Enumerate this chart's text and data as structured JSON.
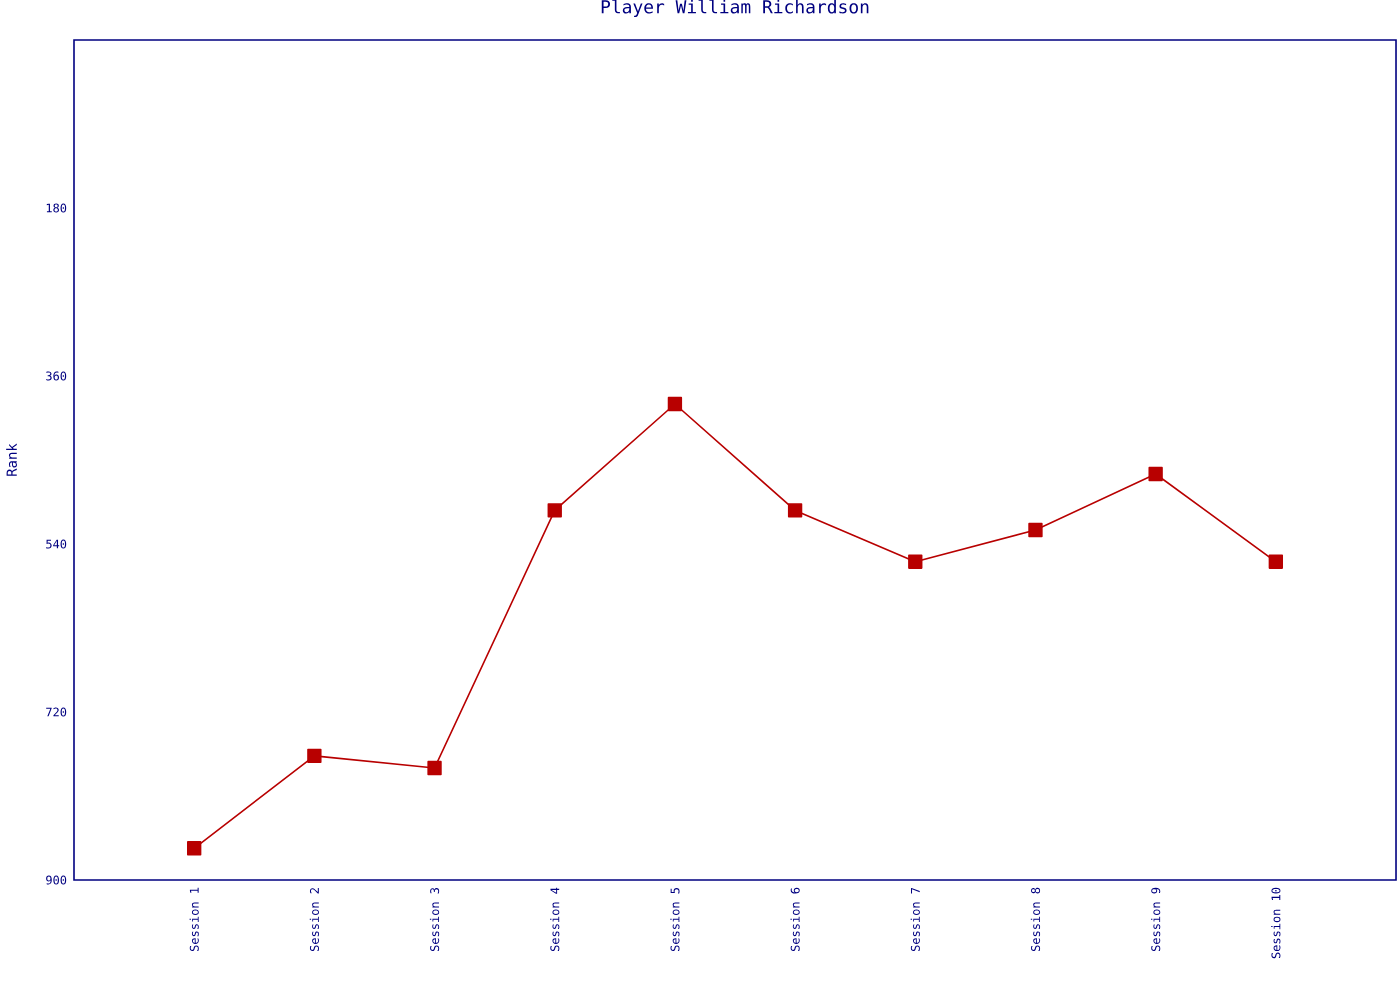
{
  "chart_data": {
    "type": "line",
    "title": "Player William Richardson",
    "ylabel": "Rank",
    "categories": [
      "Session 1",
      "Session 2",
      "Session 3",
      "Session 4",
      "Session 5",
      "Session 6",
      "Session 7",
      "Session 8",
      "Session 9",
      "Session 10"
    ],
    "series": [
      {
        "color": "#b80000",
        "values": [
          866,
          767,
          780,
          504,
          390,
          504,
          559,
          525,
          465,
          559
        ]
      }
    ],
    "ylim": [
      900,
      0
    ],
    "yticks": [
      180,
      360,
      540,
      720,
      900
    ],
    "marker": "square",
    "grid": false
  }
}
